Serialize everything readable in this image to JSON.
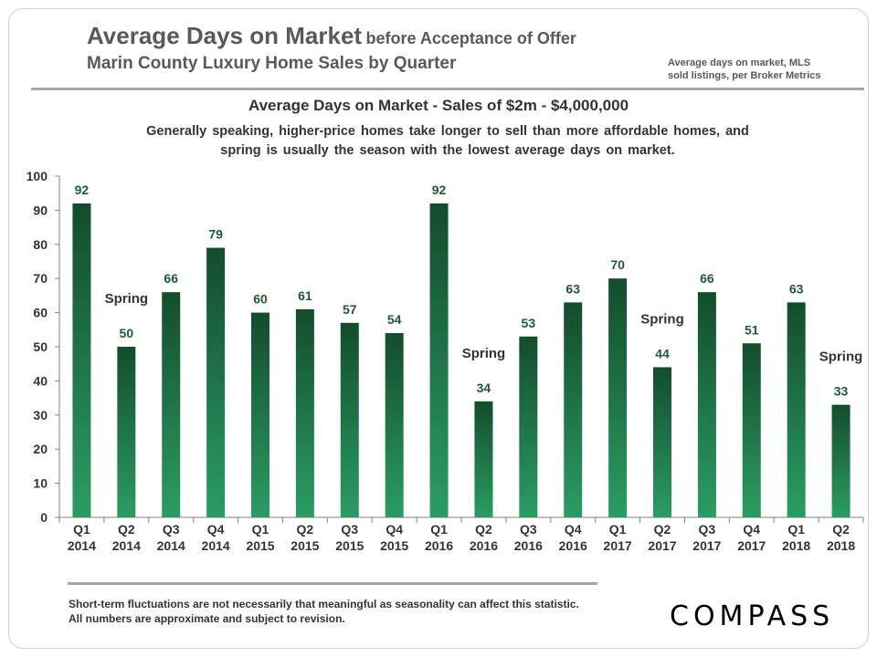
{
  "header": {
    "title_main": "Average Days on Market",
    "title_rest": "before Acceptance of Offer",
    "subtitle": "Marin County Luxury Home Sales by Quarter",
    "source_note": "Average days on market, MLS\nsold listings, per Broker Metrics"
  },
  "chart_header": {
    "title": "Average Days on Market - Sales of $2m - $4,000,000",
    "subtitle": "Generally speaking, higher-price homes take longer to sell than more affordable homes, and spring is usually the season with the lowest average days on market."
  },
  "chart_data": {
    "type": "bar",
    "categories": [
      "Q1 2014",
      "Q2 2014",
      "Q3 2014",
      "Q4 2014",
      "Q1 2015",
      "Q2 2015",
      "Q3 2015",
      "Q4 2015",
      "Q1 2016",
      "Q2 2016",
      "Q3 2016",
      "Q4 2016",
      "Q1 2017",
      "Q2 2017",
      "Q3 2017",
      "Q4 2017",
      "Q1 2018",
      "Q2 2018"
    ],
    "values": [
      92,
      50,
      66,
      79,
      60,
      61,
      57,
      54,
      92,
      34,
      53,
      63,
      70,
      44,
      66,
      51,
      63,
      33
    ],
    "ylim": [
      0,
      100
    ],
    "yticks": [
      0,
      10,
      20,
      30,
      40,
      50,
      60,
      70,
      80,
      90,
      100
    ],
    "data_labels": true,
    "grid": false,
    "bar_color_top": "#134d2c",
    "bar_color_bottom": "#2a9d63",
    "annotations": [
      {
        "category": "Q2 2014",
        "text": "Spring"
      },
      {
        "category": "Q2 2016",
        "text": "Spring"
      },
      {
        "category": "Q2 2017",
        "text": "Spring"
      },
      {
        "category": "Q2 2018",
        "text": "Spring"
      }
    ]
  },
  "footer": {
    "note": "Short-term fluctuations are not necessarily that meaningful as seasonality can affect this statistic. All numbers are approximate and subject to revision.",
    "logo": "COMPASS"
  }
}
